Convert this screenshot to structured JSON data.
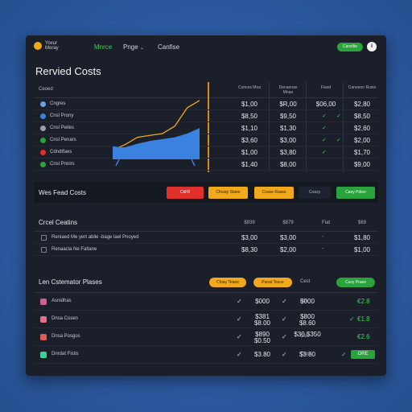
{
  "app": {
    "logo_text": "Yoxur Moray",
    "nav": [
      {
        "label": "Mnrce",
        "active": true
      },
      {
        "label": "Pnge",
        "active": false
      },
      {
        "label": "Canfise",
        "active": false
      }
    ],
    "top_button": "Cansfite",
    "top_dot": "i"
  },
  "page_title": "Rervied Costs",
  "table1": {
    "header_label": "Ceoed",
    "columns": [
      "Conces Mna",
      "Decaense Mnae",
      "Fiasd",
      "Caneeon Rusio"
    ],
    "rows": [
      {
        "icon_color": "#6aa0e0",
        "label": "Cngres",
        "v1": "$1,00",
        "v2": "$R,00",
        "v3": "$06,00",
        "v4": "$2,80"
      },
      {
        "icon_color": "#3b82e0",
        "label": "Cnsl Prony",
        "v1": "$8,50",
        "v2": "$9,50",
        "v3": "✓",
        "v4": "$8,50"
      },
      {
        "icon_color": "#9aa0aa",
        "label": "Cnsl Peiles",
        "v1": "$1,10",
        "v2": "$1,30",
        "v3": "✓",
        "v4": "$2,60"
      },
      {
        "icon_color": "#2aa33d",
        "label": "Cnsl Penars",
        "v1": "$3,60",
        "v2": "$3,00",
        "v3": "✓",
        "v4": "$2,00"
      },
      {
        "icon_color": "#e0302c",
        "label": "Cdndtfaes",
        "v1": "$1,00",
        "v2": "$3,80",
        "v3": "✓",
        "v4": "$1,70"
      },
      {
        "icon_color": "#2aa33d",
        "label": "Cnsl Pnnirs",
        "v1": "$1,40",
        "v2": "$8,00",
        "v3": "",
        "v4": "$9,00"
      }
    ]
  },
  "action_strip": {
    "title": "Wes Fead Costs",
    "buttons": [
      "CkF8",
      "Cfoaay Staee",
      "Coase Raass",
      "Coasy",
      "Caey Pdiee"
    ]
  },
  "table2": {
    "title": "Crcel Ceatins",
    "columns": [
      "$939",
      "$879",
      "Fiat",
      "$69"
    ],
    "rows": [
      {
        "label": "Reniaed Me yert ablle -bage lael Pnoyed",
        "v1": "$3,00",
        "v2": "$3,00",
        "v3": "-",
        "v4": "$1,80"
      },
      {
        "label": "Renaacla Ne Faltane",
        "v1": "$8,30",
        "v2": "$2,00",
        "v3": "-",
        "v4": "$1,00"
      }
    ]
  },
  "table3": {
    "title": "Len Cstemator Plases",
    "pills": [
      "Cfoay Teaee",
      "Panat Tesce",
      "Cest",
      "Casy Praee"
    ],
    "rows": [
      {
        "icon_color": "#d06090",
        "label": "Asnidhas",
        "v1": "$000",
        "v2": "$000",
        "status": "Lst",
        "value": "€2.8",
        "button": ""
      },
      {
        "icon_color": "#e0708a",
        "label": "Dnsa Cosen",
        "v1": "$381 $8.00",
        "v2": "$800 $8.60",
        "status": "",
        "value": "€1.8",
        "button": ""
      },
      {
        "icon_color": "#e05a5a",
        "label": "Dnsa Posgos",
        "v1": "$890 $0.50",
        "v2": "$30 $350",
        "status": "Cst",
        "value": "€2.6",
        "button": ""
      },
      {
        "icon_color": "#3fcf9b",
        "label": "Dnrdat Fistis",
        "v1": "$3.80",
        "v2": "$3.80",
        "status": "Cost",
        "value": "",
        "button": "ORE"
      }
    ]
  },
  "chart_data": {
    "type": "line",
    "x": [
      0,
      1,
      2,
      3,
      4,
      5,
      6,
      7
    ],
    "series": [
      {
        "values": [
          1,
          1.6,
          2.4,
          2.6,
          2.8,
          3.6,
          5.6,
          6.4
        ],
        "color": "#f0a81c"
      },
      {
        "values": [
          1.4,
          1.3,
          1.7,
          2.0,
          2.2,
          2.4,
          2.8,
          3.4
        ],
        "color": "#3b82e0",
        "style": "area"
      }
    ]
  }
}
